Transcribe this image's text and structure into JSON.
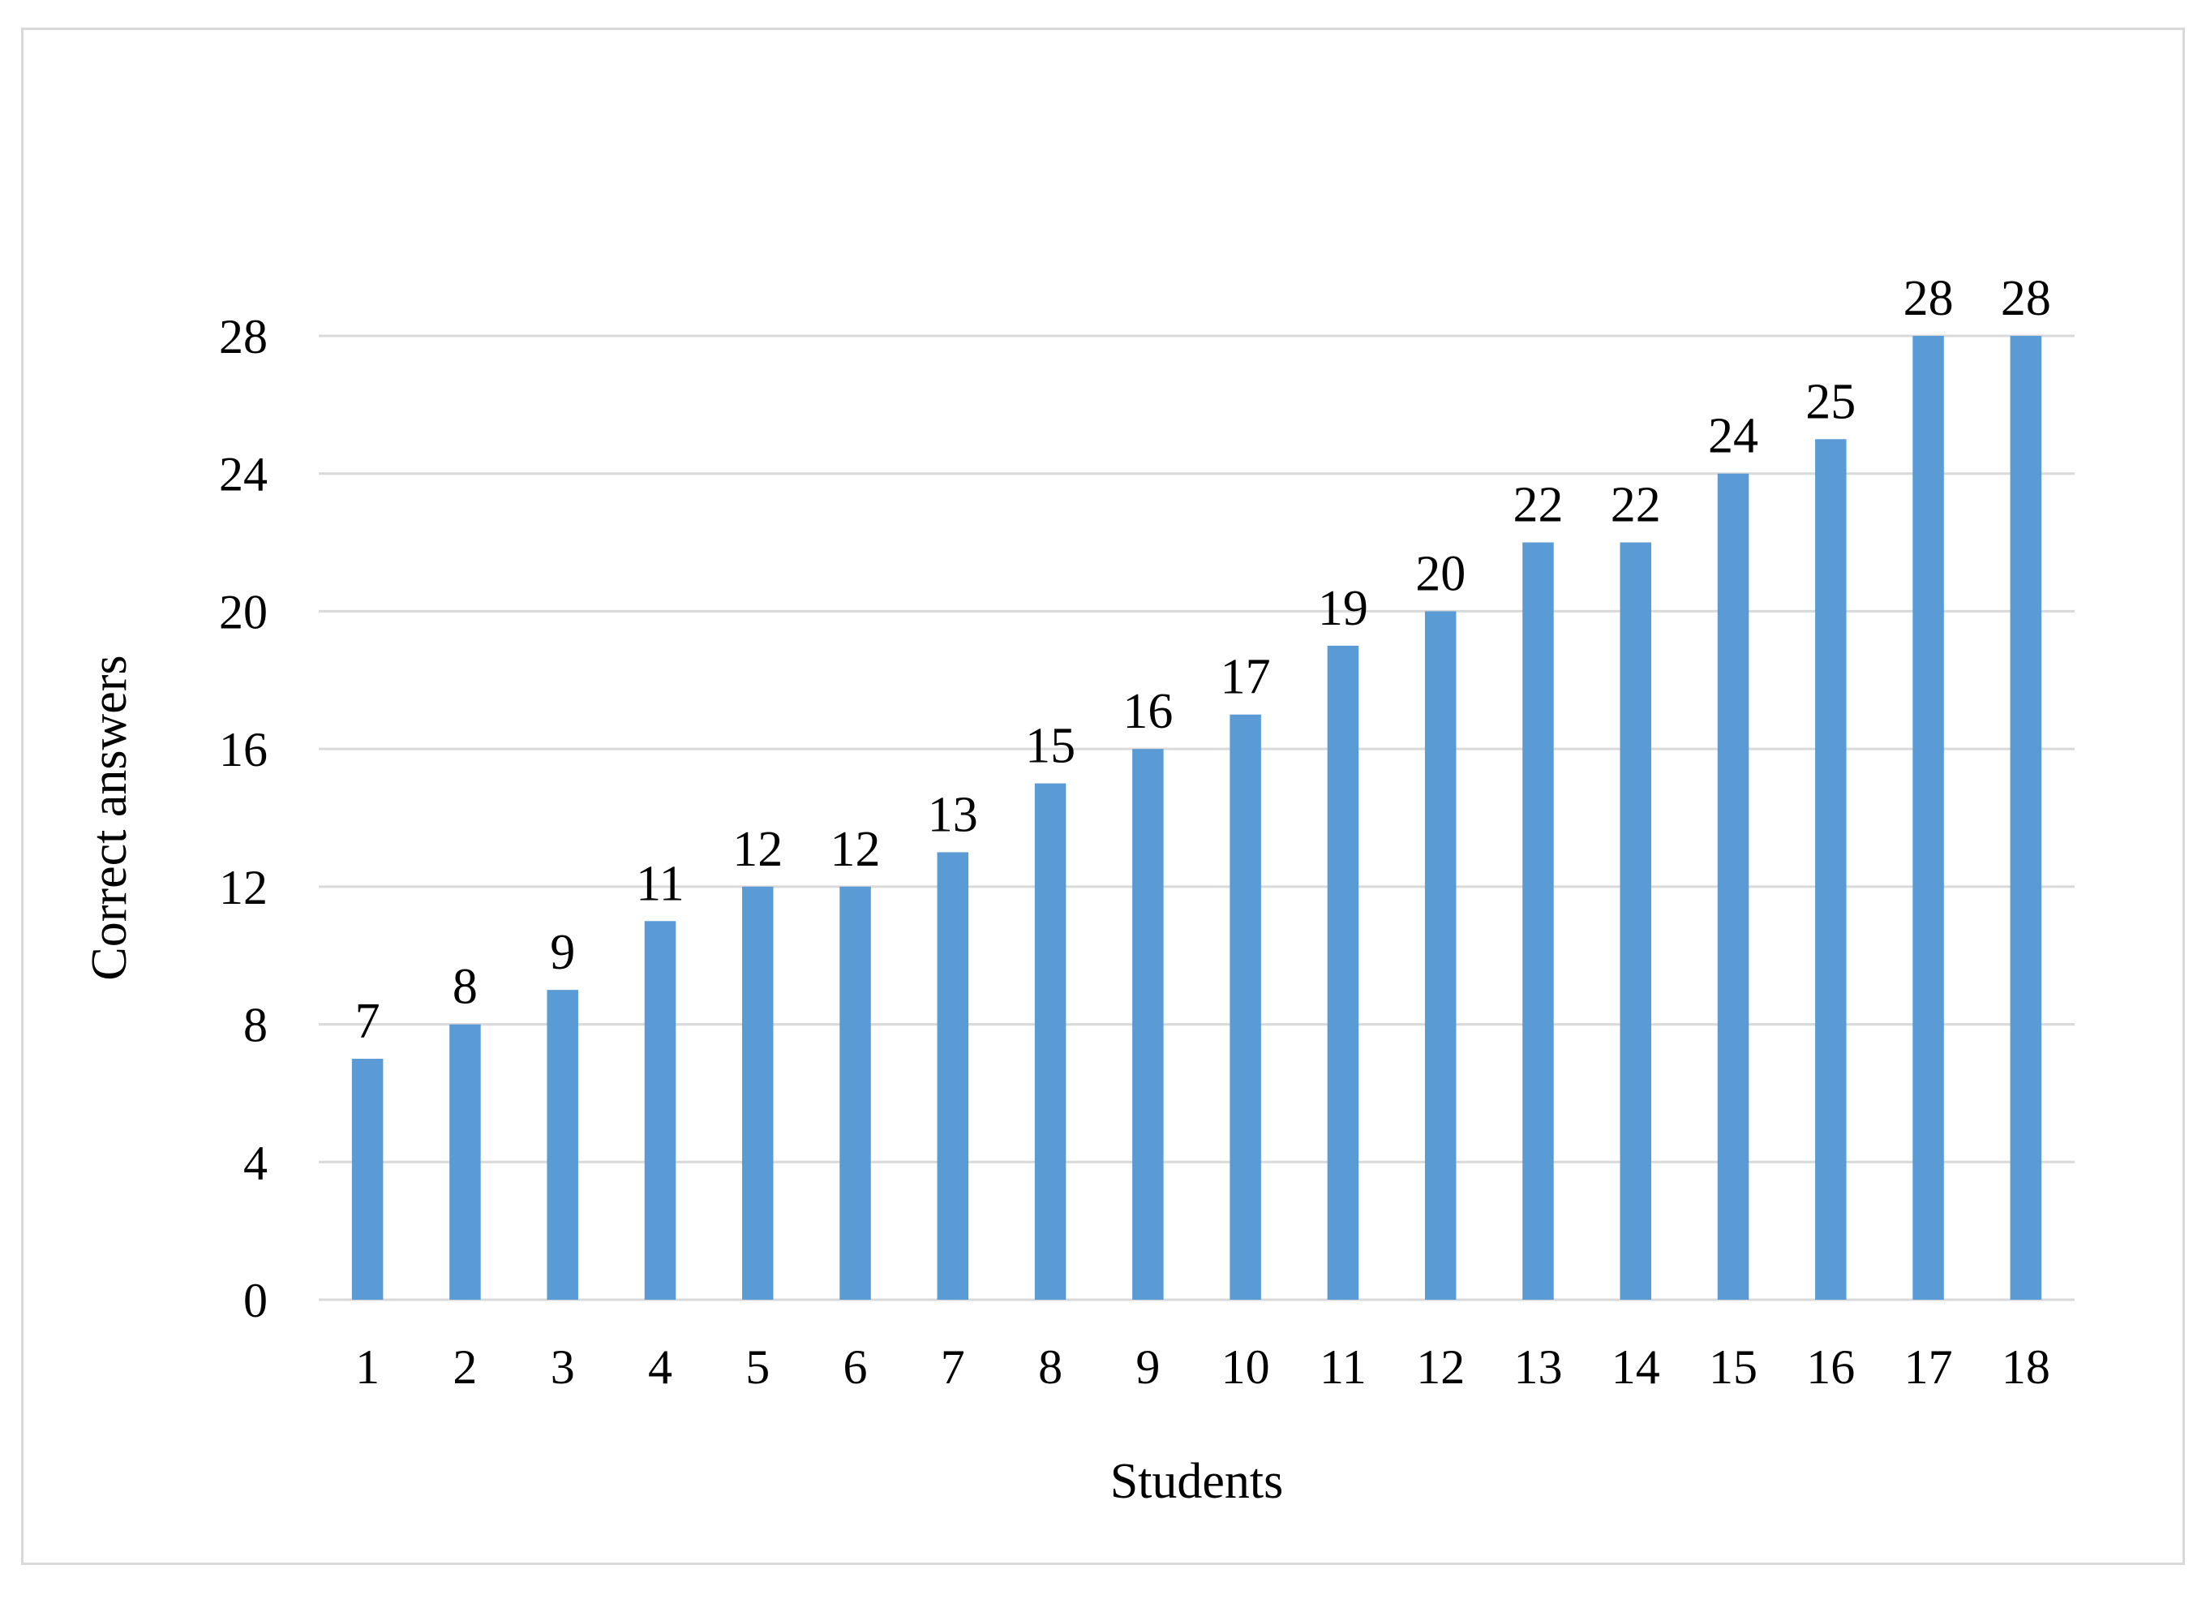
{
  "chart_data": {
    "type": "bar",
    "title": "",
    "xlabel": "Students",
    "ylabel": "Correct answers",
    "categories": [
      "1",
      "2",
      "3",
      "4",
      "5",
      "6",
      "7",
      "8",
      "9",
      "10",
      "11",
      "12",
      "13",
      "14",
      "15",
      "16",
      "17",
      "18"
    ],
    "values": [
      7,
      8,
      9,
      11,
      12,
      12,
      13,
      15,
      16,
      17,
      19,
      20,
      22,
      22,
      24,
      25,
      28,
      28
    ],
    "ylim": [
      0,
      28
    ],
    "yticks": [
      0,
      4,
      8,
      12,
      16,
      20,
      24,
      28
    ],
    "grid": true,
    "data_labels": true,
    "legend": "none",
    "bar_color": "#5b9bd5",
    "grid_color": "#d9d9d9"
  }
}
